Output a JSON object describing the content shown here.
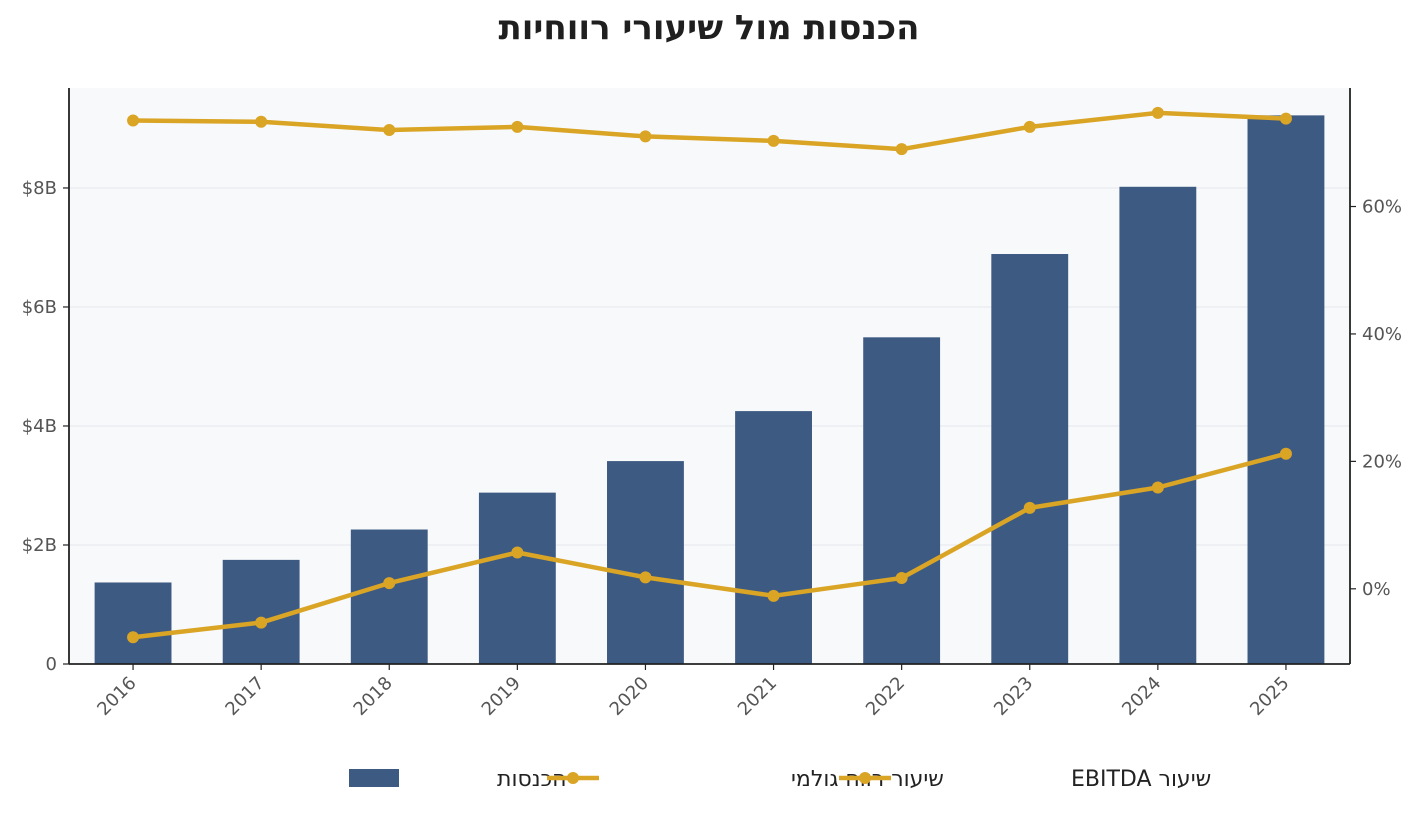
{
  "chart_data": {
    "type": "bar",
    "title": "הכנסות מול שיעורי רווחיות",
    "categories": [
      "2016",
      "2017",
      "2018",
      "2019",
      "2020",
      "2021",
      "2022",
      "2023",
      "2024",
      "2025"
    ],
    "series": [
      {
        "name": "הכנסות",
        "type": "bar",
        "axis": "left",
        "color": "#3d5a82",
        "values": [
          1.37,
          1.75,
          2.26,
          2.88,
          3.41,
          4.25,
          5.49,
          6.89,
          8.02,
          9.22
        ]
      },
      {
        "name": "שיעור רווח גולמי",
        "type": "line",
        "axis": "right",
        "color": "#daa425",
        "values": [
          73.5,
          73.3,
          72.0,
          72.5,
          71.0,
          70.3,
          69.0,
          72.5,
          74.7,
          73.8
        ]
      },
      {
        "name": "שיעור EBITDA",
        "type": "line",
        "axis": "right",
        "color": "#daa425",
        "values": [
          -7.6,
          -5.3,
          0.9,
          5.7,
          1.8,
          -1.1,
          1.7,
          12.7,
          15.9,
          21.2
        ]
      }
    ],
    "y_left": {
      "ticks": [
        0,
        2,
        4,
        6,
        8
      ],
      "tick_labels": [
        "0",
        "$2B",
        "$4B",
        "$6B",
        "$8B"
      ],
      "range": [
        0,
        9.68
      ]
    },
    "y_right": {
      "ticks": [
        0,
        20,
        40,
        60
      ],
      "tick_labels": [
        "0%",
        "20%",
        "40%",
        "60%"
      ],
      "range": [
        -11.8,
        78.6
      ]
    },
    "grid": true,
    "legend_position": "bottom-center",
    "colors": {
      "plot_background": "#f8f9fb",
      "axis": "#222222",
      "grid": "#e6e8ec"
    }
  }
}
